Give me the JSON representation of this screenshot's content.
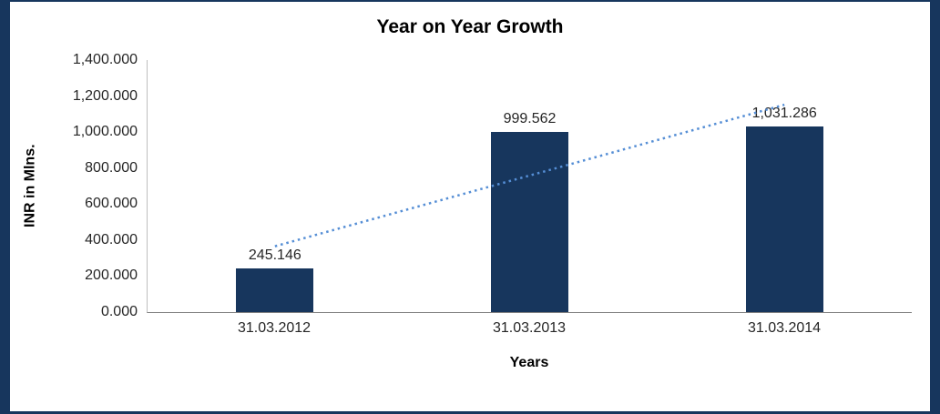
{
  "frame": {
    "accent_color": "#17365D"
  },
  "chart_data": {
    "type": "bar",
    "title": "Year on Year Growth",
    "xlabel": "Years",
    "ylabel": "INR in Mlns.",
    "categories": [
      "31.03.2012",
      "31.03.2013",
      "31.03.2014"
    ],
    "values": [
      245.146,
      999.562,
      1031.286
    ],
    "value_labels": [
      "245.146",
      "999.562",
      "1,031.286"
    ],
    "ylim": [
      0,
      1400
    ],
    "y_ticks": [
      {
        "value": 0,
        "label": "0.000"
      },
      {
        "value": 200,
        "label": "200.000"
      },
      {
        "value": 400,
        "label": "400.000"
      },
      {
        "value": 600,
        "label": "600.000"
      },
      {
        "value": 800,
        "label": "800.000"
      },
      {
        "value": 1000,
        "label": "1,000.000"
      },
      {
        "value": 1200,
        "label": "1,200.000"
      },
      {
        "value": 1400,
        "label": "1,400.000"
      }
    ],
    "bar_color": "#17365D",
    "trendline": {
      "type": "linear",
      "color": "#558ED5",
      "style": "dotted"
    },
    "grid": false,
    "legend": false
  }
}
